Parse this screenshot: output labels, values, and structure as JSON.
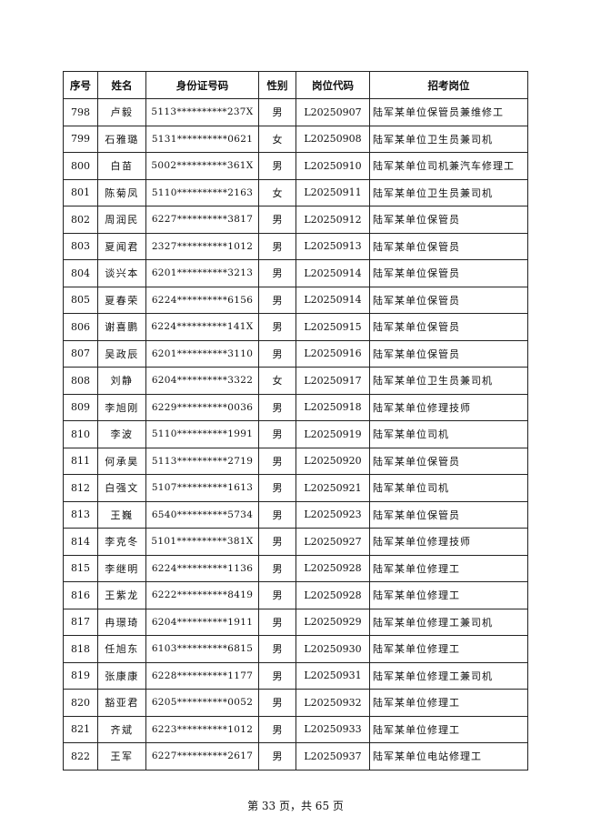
{
  "table": {
    "headers": [
      "序号",
      "姓名",
      "身份证号码",
      "性别",
      "岗位代码",
      "招考岗位"
    ],
    "rows": [
      [
        "798",
        "卢毅",
        "5113**********237X",
        "男",
        "L20250907",
        "陆军某单位保管员兼维修工"
      ],
      [
        "799",
        "石雅璐",
        "5131**********0621",
        "女",
        "L20250908",
        "陆军某单位卫生员兼司机"
      ],
      [
        "800",
        "白苗",
        "5002**********361X",
        "男",
        "L20250910",
        "陆军某单位司机兼汽车修理工"
      ],
      [
        "801",
        "陈菊凤",
        "5110**********2163",
        "女",
        "L20250911",
        "陆军某单位卫生员兼司机"
      ],
      [
        "802",
        "周润民",
        "6227**********3817",
        "男",
        "L20250912",
        "陆军某单位保管员"
      ],
      [
        "803",
        "夏闻君",
        "2327**********1012",
        "男",
        "L20250913",
        "陆军某单位保管员"
      ],
      [
        "804",
        "谈兴本",
        "6201**********3213",
        "男",
        "L20250914",
        "陆军某单位保管员"
      ],
      [
        "805",
        "夏春荣",
        "6224**********6156",
        "男",
        "L20250914",
        "陆军某单位保管员"
      ],
      [
        "806",
        "谢喜鹏",
        "6224**********141X",
        "男",
        "L20250915",
        "陆军某单位保管员"
      ],
      [
        "807",
        "吴政辰",
        "6201**********3110",
        "男",
        "L20250916",
        "陆军某单位保管员"
      ],
      [
        "808",
        "刘静",
        "6204**********3322",
        "女",
        "L20250917",
        "陆军某单位卫生员兼司机"
      ],
      [
        "809",
        "李旭刚",
        "6229**********0036",
        "男",
        "L20250918",
        "陆军某单位修理技师"
      ],
      [
        "810",
        "李波",
        "5110**********1991",
        "男",
        "L20250919",
        "陆军某单位司机"
      ],
      [
        "811",
        "何承昊",
        "5113**********2719",
        "男",
        "L20250920",
        "陆军某单位保管员"
      ],
      [
        "812",
        "白强文",
        "5107**********1613",
        "男",
        "L20250921",
        "陆军某单位司机"
      ],
      [
        "813",
        "王巍",
        "6540**********5734",
        "男",
        "L20250923",
        "陆军某单位保管员"
      ],
      [
        "814",
        "李克冬",
        "5101**********381X",
        "男",
        "L20250927",
        "陆军某单位修理技师"
      ],
      [
        "815",
        "李继明",
        "6224**********1136",
        "男",
        "L20250928",
        "陆军某单位修理工"
      ],
      [
        "816",
        "王紫龙",
        "6222**********8419",
        "男",
        "L20250928",
        "陆军某单位修理工"
      ],
      [
        "817",
        "冉璟琦",
        "6204**********1911",
        "男",
        "L20250929",
        "陆军某单位修理工兼司机"
      ],
      [
        "818",
        "任旭东",
        "6103**********6815",
        "男",
        "L20250930",
        "陆军某单位修理工"
      ],
      [
        "819",
        "张康康",
        "6228**********1177",
        "男",
        "L20250931",
        "陆军某单位修理工兼司机"
      ],
      [
        "820",
        "豁亚君",
        "6205**********0052",
        "男",
        "L20250932",
        "陆军某单位修理工"
      ],
      [
        "821",
        "齐斌",
        "6223**********1012",
        "男",
        "L20250933",
        "陆军某单位修理工"
      ],
      [
        "822",
        "王军",
        "6227**********2617",
        "男",
        "L20250937",
        "陆军某单位电站修理工"
      ]
    ]
  },
  "footer": {
    "page_text": "第 33 页，共 65 页"
  }
}
